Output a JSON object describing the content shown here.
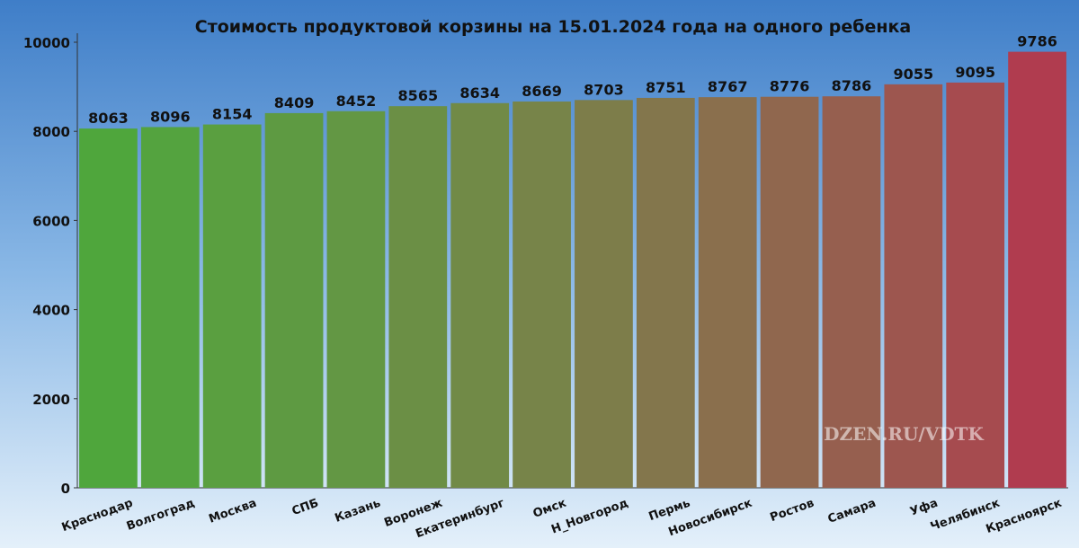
{
  "chart_data": {
    "type": "bar",
    "title": "Стоимость продуктовой корзины на 15.01.2024 года на одного ребенка",
    "categories": [
      "Краснодар",
      "Волгоград",
      "Москва",
      "СПБ",
      "Казань",
      "Воронеж",
      "Екатеринбург",
      "Омск",
      "Н_Новгород",
      "Пермь",
      "Новосибирск",
      "Ростов",
      "Самара",
      "Уфа",
      "Челябинск",
      "Красноярск"
    ],
    "values": [
      8063,
      8096,
      8154,
      8409,
      8452,
      8565,
      8634,
      8669,
      8703,
      8751,
      8767,
      8776,
      8786,
      9055,
      9095,
      9786
    ],
    "colors": [
      "#4fa63c",
      "#54a33f",
      "#5a9f40",
      "#5e9a42",
      "#639744",
      "#6b8f45",
      "#718a47",
      "#778449",
      "#7d7d4a",
      "#83764c",
      "#8a6f4d",
      "#90674e",
      "#965f4f",
      "#9d564f",
      "#a64b4f",
      "#b03c4f"
    ],
    "ylim": [
      0,
      10000
    ],
    "yticks": [
      0,
      2000,
      4000,
      6000,
      8000,
      10000
    ],
    "watermark": "DZEN.RU/VDTK"
  }
}
